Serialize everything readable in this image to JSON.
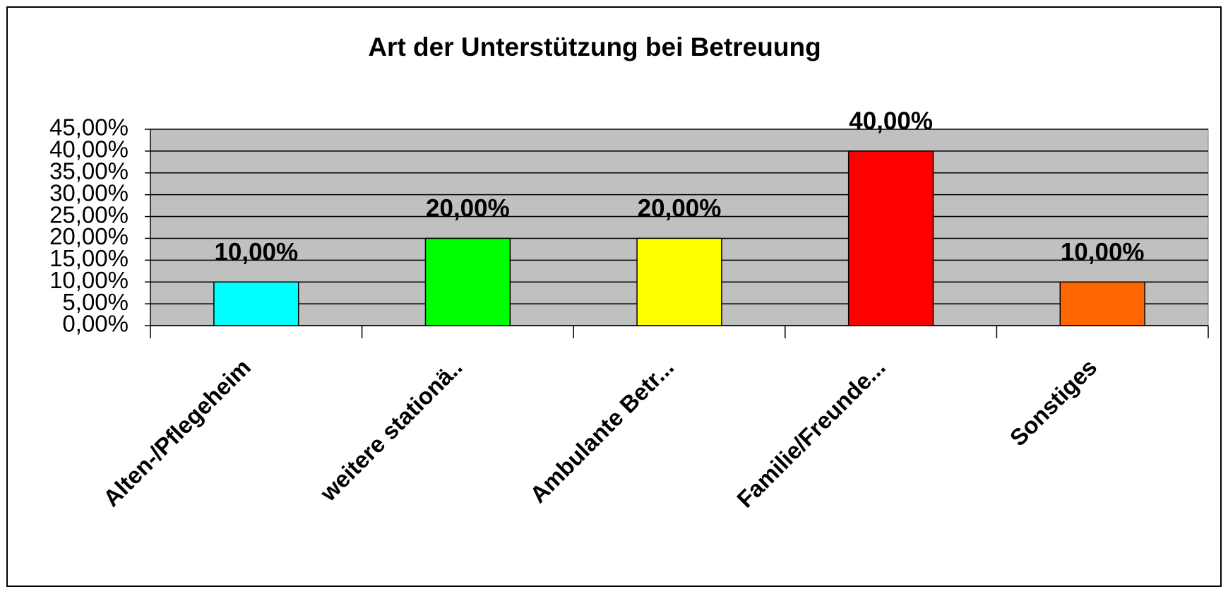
{
  "chart_data": {
    "type": "bar",
    "title": "Art der Unterstützung bei Betreuung",
    "categories": [
      "Alten-/Pflegeheim",
      "weitere stationä..",
      "Ambulante Betr...",
      "Familie/Freunde...",
      "Sonstiges"
    ],
    "values": [
      10,
      20,
      20,
      40,
      10
    ],
    "value_labels": [
      "10,00%",
      "20,00%",
      "20,00%",
      "40,00%",
      "10,00%"
    ],
    "colors": [
      "#00ffff",
      "#00ff00",
      "#ffff00",
      "#ff0000",
      "#ff6600"
    ],
    "ylim": [
      0,
      45
    ],
    "yticks": [
      {
        "value": 0,
        "label": "0,00%"
      },
      {
        "value": 5,
        "label": "5,00%"
      },
      {
        "value": 10,
        "label": "10,00%"
      },
      {
        "value": 15,
        "label": "15,00%"
      },
      {
        "value": 20,
        "label": "20,00%"
      },
      {
        "value": 25,
        "label": "25,00%"
      },
      {
        "value": 30,
        "label": "30,00%"
      },
      {
        "value": 35,
        "label": "35,00%"
      },
      {
        "value": 40,
        "label": "40,00%"
      },
      {
        "value": 45,
        "label": "45,00%"
      }
    ],
    "grid": true
  }
}
